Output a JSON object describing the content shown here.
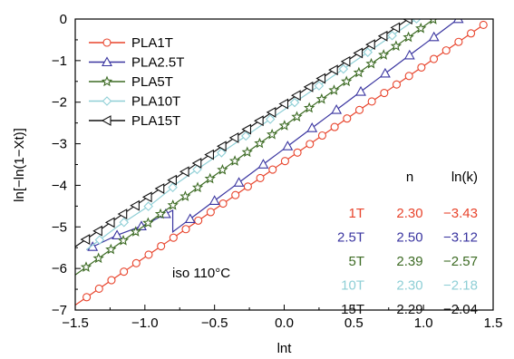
{
  "chart_data": {
    "type": "line",
    "title": "",
    "xlabel": "lnt",
    "ylabel": "ln[−ln(1−Xt)]",
    "xlim": [
      -1.5,
      1.5
    ],
    "ylim": [
      -7,
      0
    ],
    "xticks": [
      "−1.5",
      "−1.0",
      "−0.5",
      "0.0",
      "0.5",
      "1.0",
      "1.5"
    ],
    "yticks": [
      "0",
      "−1",
      "−2",
      "−3",
      "−4",
      "−5",
      "−6",
      "−7"
    ],
    "grid": false,
    "legend_position": "top-left",
    "annotation": "iso 110°C",
    "series": [
      {
        "name": "PLA1T",
        "color": "#e8442c",
        "marker": "circle",
        "x_start": -1.5,
        "x_end": 1.43,
        "n": 2.3,
        "lnk": -3.43,
        "marker_step": 0.089
      },
      {
        "name": "PLA2.5T",
        "color": "#3a35a0",
        "marker": "triangle-up",
        "x_start": -1.42,
        "x_end": 1.25,
        "n": 2.5,
        "lnk": -3.12,
        "marker_step": 0.175,
        "curve_points": [
          [
            -1.42,
            -5.55
          ],
          [
            -1.2,
            -5.2
          ],
          [
            -1.0,
            -4.95
          ],
          [
            -0.8,
            -4.6
          ]
        ]
      },
      {
        "name": "PLA5T",
        "color": "#3d6b24",
        "marker": "star",
        "x_start": -1.5,
        "x_end": 1.07,
        "n": 2.39,
        "lnk": -2.57,
        "marker_step": 0.089
      },
      {
        "name": "PLA10T",
        "color": "#8fcfd6",
        "marker": "diamond",
        "x_start": -1.42,
        "x_end": 0.95,
        "n": 2.3,
        "lnk": -2.18,
        "marker_step": 0.175,
        "curve_points": [
          [
            -1.42,
            -5.55
          ],
          [
            -1.2,
            -5.0
          ],
          [
            -0.95,
            -4.45
          ],
          [
            -0.8,
            -4.05
          ]
        ]
      },
      {
        "name": "PLA15T",
        "color": "#111111",
        "marker": "triangle-left",
        "x_start": -1.5,
        "x_end": 0.89,
        "n": 2.29,
        "lnk": -2.04,
        "marker_step": 0.089
      }
    ],
    "table": {
      "headers": [
        "",
        "n",
        "ln(k)"
      ],
      "rows": [
        {
          "label": "1T",
          "n": "2.30",
          "lnk": "−3.43",
          "color": "#e8442c"
        },
        {
          "label": "2.5T",
          "n": "2.50",
          "lnk": "−3.12",
          "color": "#3a35a0"
        },
        {
          "label": "5T",
          "n": "2.39",
          "lnk": "−2.57",
          "color": "#3d6b24"
        },
        {
          "label": "10T",
          "n": "2.30",
          "lnk": "−2.18",
          "color": "#8fcfd6"
        },
        {
          "label": "15T",
          "n": "2.29",
          "lnk": "−2.04",
          "color": "#111111"
        }
      ]
    }
  }
}
